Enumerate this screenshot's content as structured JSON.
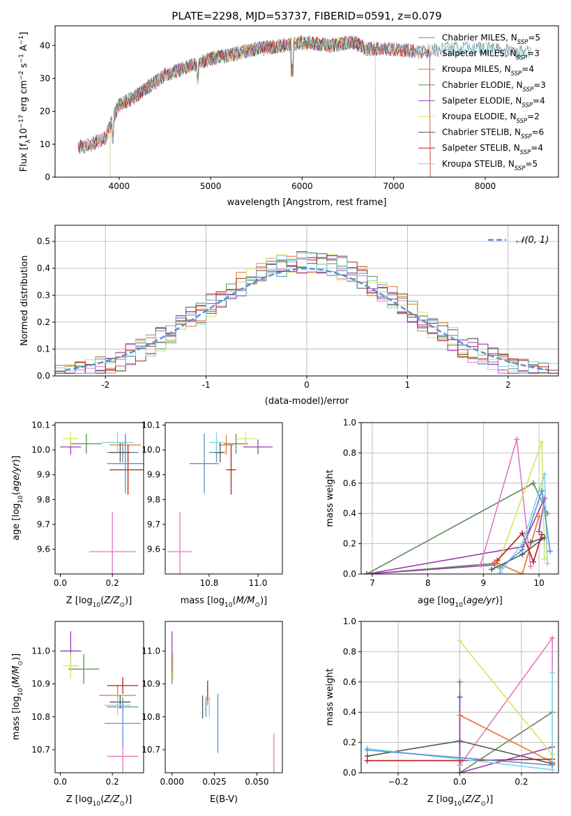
{
  "figure_title": "PLATE=2298, MJD=53737, FIBERID=0591, z=0.079",
  "colors": {
    "Chabrier MILES": "#5a8fa8",
    "Salpeter MILES": "#e377c2",
    "Kroupa MILES": "#e8742a",
    "Chabrier ELODIE": "#5a8a5a",
    "Salpeter ELODIE": "#9a3ab3",
    "Kroupa ELODIE": "#d6e65a",
    "Chabrier STELIB": "#555555",
    "Salpeter STELIB": "#b51d1d",
    "Kroupa STELIB": "#80d4e0",
    "normal": "#5b8fd6"
  },
  "chart_data": [
    {
      "id": "spectrum",
      "type": "line",
      "xlabel": "wavelength [Angstrom, rest frame]",
      "ylabel": "Flux [f_λ10^-17 erg cm^-2 s^-1 A^-1]",
      "xlim": [
        3300,
        8800
      ],
      "ylim": [
        0,
        46
      ],
      "xticks": [
        4000,
        5000,
        6000,
        7000,
        8000
      ],
      "yticks": [
        0,
        10,
        20,
        30,
        40
      ],
      "legend_position": "upper-right",
      "series": [
        {
          "name": "Chabrier MILES, N_SSP=5",
          "nssp": "5",
          "x_range": [
            3550,
            7400
          ]
        },
        {
          "name": "Salpeter MILES, N_SSP=3",
          "nssp": "3",
          "x_range": [
            3550,
            7400
          ]
        },
        {
          "name": "Kroupa MILES, N_SSP=4",
          "nssp": "4",
          "x_range": [
            3550,
            7400
          ]
        },
        {
          "name": "Chabrier ELODIE, N_SSP=3",
          "nssp": "3",
          "x_range": [
            3900,
            6800
          ]
        },
        {
          "name": "Salpeter ELODIE, N_SSP=4",
          "nssp": "4",
          "x_range": [
            3900,
            6800
          ]
        },
        {
          "name": "Kroupa ELODIE, N_SSP=2",
          "nssp": "2",
          "x_range": [
            3900,
            6800
          ]
        },
        {
          "name": "Chabrier STELIB, N_SSP=6",
          "nssp": "6",
          "x_range": [
            3550,
            8500
          ]
        },
        {
          "name": "Salpeter STELIB, N_SSP=4",
          "nssp": "4",
          "x_range": [
            3550,
            7400
          ]
        },
        {
          "name": "Kroupa STELIB, N_SSP=5",
          "nssp": "5",
          "x_range": [
            3550,
            8500
          ]
        }
      ],
      "continuum": {
        "x": [
          3550,
          3700,
          3850,
          3950,
          4000,
          4150,
          4300,
          4500,
          4700,
          5000,
          5200,
          5500,
          5800,
          6000,
          6300,
          6560,
          6700,
          7000,
          7300,
          7600,
          8000,
          8300,
          8500
        ],
        "y": [
          9,
          10,
          12,
          19,
          22,
          24,
          27,
          31,
          33,
          36,
          37,
          39,
          40,
          41,
          40,
          41,
          39,
          39,
          38,
          39,
          39,
          38,
          38
        ]
      }
    },
    {
      "id": "residuals",
      "type": "histogram",
      "xlabel": "(data-model)/error",
      "ylabel": "Normed distribution",
      "xlim": [
        -2.5,
        2.5
      ],
      "ylim": [
        0,
        0.56
      ],
      "xticks": [
        -2,
        -1,
        0,
        1,
        2
      ],
      "yticks": [
        0.0,
        0.1,
        0.2,
        0.3,
        0.4,
        0.5
      ],
      "grid": true,
      "bin_width": 0.1,
      "reference_curve": {
        "name": "N(0,1)",
        "label": "𝒩(0, 1)",
        "style": "dashed"
      },
      "legend_position": "upper-right"
    },
    {
      "id": "age_vs_Z",
      "type": "scatter",
      "xlabel": "Z [log10(Z/Z⊙)]",
      "ylabel": "age  [log10(age/yr)]",
      "xlim": [
        -0.02,
        0.32
      ],
      "ylim": [
        9.5,
        10.11
      ],
      "xticks": [
        0.0,
        0.2
      ],
      "yticks": [
        9.6,
        9.7,
        9.8,
        9.9,
        10.0,
        10.1
      ],
      "points": [
        {
          "model": "Chabrier MILES",
          "x": 0.24,
          "xerr": 0.06,
          "y": 9.99,
          "yerr": 0.04
        },
        {
          "model": "Salpeter MILES",
          "x": 0.2,
          "xerr": 0.09,
          "y": 9.59,
          "yerr": 0.16
        },
        {
          "model": "Kroupa MILES",
          "x": 0.25,
          "xerr": 0.06,
          "y": 10.02,
          "yerr": 0.04
        },
        {
          "model": "Chabrier ELODIE",
          "x": 0.1,
          "xerr": 0.06,
          "y": 10.025,
          "yerr": 0.04
        },
        {
          "model": "Salpeter ELODIE",
          "x": 0.04,
          "xerr": 0.04,
          "y": 10.012,
          "yerr": 0.03
        },
        {
          "model": "Kroupa ELODIE",
          "x": 0.04,
          "xerr": 0.03,
          "y": 10.045,
          "yerr": 0.03
        },
        {
          "model": "Chabrier STELIB",
          "x": 0.23,
          "xerr": 0.04,
          "y": 9.99,
          "yerr": 0.04
        },
        {
          "model": "Salpeter STELIB",
          "x": 0.26,
          "xerr": 0.07,
          "y": 9.92,
          "yerr": 0.1
        },
        {
          "model": "Kroupa STELIB",
          "x": 0.22,
          "xerr": 0.06,
          "y": 10.03,
          "yerr": 0.04
        },
        {
          "model": "normal",
          "x": 0.25,
          "xerr": 0.07,
          "y": 9.945,
          "yerr": 0.12
        }
      ]
    },
    {
      "id": "age_vs_mass",
      "type": "scatter",
      "xlabel": "mass [log10(M/M⊙)]",
      "ylabel": "",
      "xlim": [
        10.62,
        11.1
      ],
      "ylim": [
        9.5,
        10.11
      ],
      "xticks": [
        10.8,
        11.0
      ],
      "yticks": [
        9.6,
        9.7,
        9.8,
        9.9,
        10.0,
        10.1
      ],
      "points": [
        {
          "model": "Chabrier MILES",
          "x": 10.83,
          "xerr": 0.03,
          "y": 9.99,
          "yerr": 0.04
        },
        {
          "model": "Salpeter MILES",
          "x": 10.68,
          "xerr": 0.05,
          "y": 9.59,
          "yerr": 0.16
        },
        {
          "model": "Kroupa MILES",
          "x": 10.87,
          "xerr": 0.03,
          "y": 10.02,
          "yerr": 0.04
        },
        {
          "model": "Chabrier ELODIE",
          "x": 10.91,
          "xerr": 0.05,
          "y": 10.025,
          "yerr": 0.04
        },
        {
          "model": "Salpeter ELODIE",
          "x": 11.0,
          "xerr": 0.06,
          "y": 10.012,
          "yerr": 0.03
        },
        {
          "model": "Kroupa ELODIE",
          "x": 10.95,
          "xerr": 0.04,
          "y": 10.045,
          "yerr": 0.03
        },
        {
          "model": "Chabrier STELIB",
          "x": 10.845,
          "xerr": 0.02,
          "y": 9.99,
          "yerr": 0.04
        },
        {
          "model": "Salpeter STELIB",
          "x": 10.89,
          "xerr": 0.02,
          "y": 9.92,
          "yerr": 0.1
        },
        {
          "model": "Kroupa STELIB",
          "x": 10.83,
          "xerr": 0.03,
          "y": 10.03,
          "yerr": 0.04
        },
        {
          "model": "normal",
          "x": 10.78,
          "xerr": 0.06,
          "y": 9.945,
          "yerr": 0.12
        }
      ]
    },
    {
      "id": "weight_vs_age",
      "type": "line",
      "xlabel": "age  [log10(age/yr)]",
      "ylabel": "mass weight",
      "xlim": [
        6.8,
        10.35
      ],
      "ylim": [
        0,
        1.0
      ],
      "xticks": [
        7,
        8,
        9,
        10
      ],
      "yticks": [
        0.0,
        0.2,
        0.4,
        0.6,
        0.8,
        1.0
      ],
      "grid": true,
      "series": [
        {
          "model": "Chabrier ELODIE",
          "points": [
            [
              9.2,
              0.07
            ],
            [
              6.9,
              0.0
            ],
            [
              9.9,
              0.6
            ],
            [
              10.15,
              0.4
            ]
          ]
        },
        {
          "model": "Salpeter ELODIE",
          "points": [
            [
              9.2,
              0.06
            ],
            [
              6.9,
              0.0
            ],
            [
              9.7,
              0.18
            ],
            [
              10.1,
              0.5
            ],
            [
              10.0,
              0.28
            ]
          ]
        },
        {
          "model": "Salpeter MILES",
          "points": [
            [
              8.95,
              0.06
            ],
            [
              9.6,
              0.89
            ],
            [
              9.85,
              0.05
            ]
          ]
        },
        {
          "model": "Kroupa ELODIE",
          "points": [
            [
              9.25,
              0.05
            ],
            [
              10.05,
              0.87
            ],
            [
              10.1,
              0.1
            ]
          ]
        },
        {
          "model": "Kroupa MILES",
          "points": [
            [
              9.2,
              0.08
            ],
            [
              9.7,
              0.0
            ],
            [
              10.0,
              0.38
            ]
          ]
        },
        {
          "model": "Chabrier STELIB",
          "points": [
            [
              9.15,
              0.03
            ],
            [
              9.7,
              0.13
            ],
            [
              10.1,
              0.24
            ],
            [
              9.85,
              0.21
            ]
          ]
        },
        {
          "model": "Salpeter STELIB",
          "points": [
            [
              9.25,
              0.09
            ],
            [
              9.7,
              0.27
            ],
            [
              9.9,
              0.08
            ],
            [
              10.05,
              0.26
            ]
          ]
        },
        {
          "model": "Kroupa STELIB",
          "points": [
            [
              9.3,
              0.01
            ],
            [
              9.7,
              0.2
            ],
            [
              10.1,
              0.66
            ],
            [
              10.15,
              0.07
            ]
          ]
        },
        {
          "model": "normal",
          "points": [
            [
              9.3,
              0.04
            ],
            [
              9.7,
              0.16
            ],
            [
              10.05,
              0.55
            ],
            [
              10.2,
              0.15
            ]
          ]
        }
      ]
    },
    {
      "id": "mass_vs_Z",
      "type": "scatter",
      "xlabel": "Z [log10(Z/Z⊙)]",
      "ylabel": "mass [log10(M/M⊙)]",
      "xlim": [
        -0.02,
        0.32
      ],
      "ylim": [
        10.63,
        11.09
      ],
      "xticks": [
        0.0,
        0.2
      ],
      "yticks": [
        10.7,
        10.8,
        10.9,
        11.0
      ],
      "points": [
        {
          "model": "Chabrier MILES",
          "x": 0.24,
          "xerr": 0.06,
          "y": 10.83,
          "yerr": 0.03
        },
        {
          "model": "Salpeter MILES",
          "x": 0.24,
          "xerr": 0.06,
          "y": 10.68,
          "yerr": 0.07
        },
        {
          "model": "Kroupa MILES",
          "x": 0.22,
          "xerr": 0.07,
          "y": 10.865,
          "yerr": 0.03
        },
        {
          "model": "Chabrier ELODIE",
          "x": 0.09,
          "xerr": 0.06,
          "y": 10.945,
          "yerr": 0.045
        },
        {
          "model": "Salpeter ELODIE",
          "x": 0.04,
          "xerr": 0.04,
          "y": 11.0,
          "yerr": 0.06
        },
        {
          "model": "Kroupa ELODIE",
          "x": 0.04,
          "xerr": 0.03,
          "y": 10.955,
          "yerr": 0.04
        },
        {
          "model": "Chabrier STELIB",
          "x": 0.23,
          "xerr": 0.04,
          "y": 10.845,
          "yerr": 0.02
        },
        {
          "model": "Salpeter STELIB",
          "x": 0.24,
          "xerr": 0.06,
          "y": 10.895,
          "yerr": 0.025
        },
        {
          "model": "Kroupa STELIB",
          "x": 0.22,
          "xerr": 0.05,
          "y": 10.835,
          "yerr": 0.03
        },
        {
          "model": "normal",
          "x": 0.24,
          "xerr": 0.07,
          "y": 10.78,
          "yerr": 0.07
        }
      ]
    },
    {
      "id": "mass_vs_ebv",
      "type": "scatter",
      "xlabel": "E(B-V)",
      "ylabel": "",
      "xlim": [
        -0.004,
        0.065
      ],
      "ylim": [
        10.63,
        11.09
      ],
      "xticks": [
        0.0,
        0.025,
        0.05
      ],
      "xtick_labels": [
        "0.000",
        "0.025",
        "0.050"
      ],
      "yticks": [
        10.7,
        10.8,
        10.9,
        11.0
      ],
      "points": [
        {
          "model": "Chabrier MILES",
          "x": 0.02,
          "y": 10.83,
          "yerr": 0.03
        },
        {
          "model": "Salpeter MILES",
          "x": 0.06,
          "y": 10.68,
          "yerr": 0.07
        },
        {
          "model": "Kroupa MILES",
          "x": 0.021,
          "y": 10.865,
          "yerr": 0.03
        },
        {
          "model": "Chabrier ELODIE",
          "x": 0.0,
          "y": 10.945,
          "yerr": 0.045
        },
        {
          "model": "Salpeter ELODIE",
          "x": 0.0,
          "y": 11.0,
          "yerr": 0.06
        },
        {
          "model": "Kroupa ELODIE",
          "x": 0.0005,
          "y": 10.955,
          "yerr": 0.04
        },
        {
          "model": "Chabrier STELIB",
          "x": 0.018,
          "y": 10.83,
          "yerr": 0.035
        },
        {
          "model": "Salpeter STELIB",
          "x": 0.021,
          "y": 10.88,
          "yerr": 0.03
        },
        {
          "model": "Kroupa STELIB",
          "x": 0.022,
          "y": 10.83,
          "yerr": 0.03
        },
        {
          "model": "normal",
          "x": 0.027,
          "y": 10.78,
          "yerr": 0.09
        }
      ]
    },
    {
      "id": "weight_vs_Z",
      "type": "line",
      "xlabel": "Z [log10(Z/Z⊙)]",
      "ylabel": "mass weight",
      "xlim": [
        -0.32,
        0.32
      ],
      "ylim": [
        0,
        1.0
      ],
      "xticks": [
        -0.2,
        0.0,
        0.2
      ],
      "yticks": [
        0.0,
        0.2,
        0.4,
        0.6,
        0.8,
        1.0
      ],
      "grid": true,
      "series": [
        {
          "model": "Chabrier ELODIE",
          "points": [
            [
              0.0,
              0.6
            ],
            [
              0.0,
              0.0
            ],
            [
              0.3,
              0.4
            ]
          ]
        },
        {
          "model": "Salpeter ELODIE",
          "points": [
            [
              0.0,
              0.5
            ],
            [
              0.0,
              0.0
            ],
            [
              0.3,
              0.17
            ]
          ]
        },
        {
          "model": "Salpeter MILES",
          "points": [
            [
              0.0,
              0.05
            ],
            [
              0.3,
              0.89
            ],
            [
              0.3,
              0.06
            ]
          ]
        },
        {
          "model": "Kroupa ELODIE",
          "points": [
            [
              0.0,
              0.87
            ],
            [
              0.3,
              0.12
            ]
          ]
        },
        {
          "model": "Kroupa MILES",
          "points": [
            [
              0.0,
              0.38
            ],
            [
              0.3,
              0.07
            ]
          ]
        },
        {
          "model": "Chabrier STELIB",
          "points": [
            [
              -0.3,
              0.11
            ],
            [
              0.0,
              0.21
            ],
            [
              0.3,
              0.06
            ]
          ]
        },
        {
          "model": "Salpeter STELIB",
          "points": [
            [
              -0.3,
              0.08
            ],
            [
              0.0,
              0.08
            ],
            [
              0.3,
              0.09
            ]
          ]
        },
        {
          "model": "Kroupa STELIB",
          "points": [
            [
              -0.3,
              0.16
            ],
            [
              0.3,
              0.02
            ],
            [
              0.3,
              0.66
            ]
          ]
        },
        {
          "model": "normal",
          "points": [
            [
              -0.3,
              0.15
            ],
            [
              0.0,
              0.1
            ],
            [
              0.3,
              0.05
            ]
          ]
        }
      ]
    }
  ]
}
